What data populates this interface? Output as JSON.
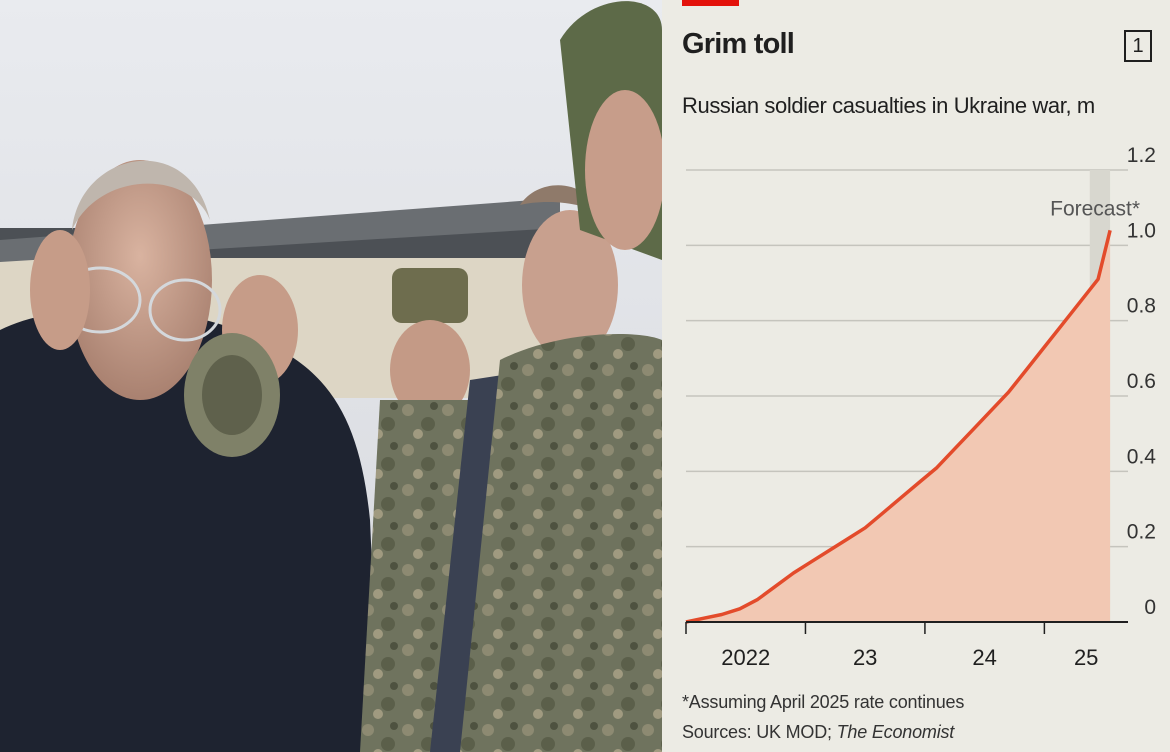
{
  "photo": {
    "description": ""
  },
  "chart": {
    "title": "Grim toll",
    "figure_number": "1",
    "subtitle": "Russian soldier casualties in Ukraine war, m",
    "forecast_label": "Forecast*",
    "footnote": "*Assuming April 2025 rate continues",
    "sources_prefix": "Sources: UK MOD; ",
    "sources_italic": "The Economist"
  },
  "colors": {
    "accent_red": "#e3120b",
    "line": "#e34b2b",
    "area": "#f2c8b3",
    "background": "#ecebe4",
    "forecast_band": "#d8d7cf",
    "gridline": "#c5c4bd"
  },
  "chart_data": {
    "type": "area",
    "title": "Grim toll",
    "subtitle": "Russian soldier casualties in Ukraine war, m",
    "xlabel": "",
    "ylabel": "",
    "y_ticks": [
      0,
      0.2,
      0.4,
      0.6,
      0.8,
      1.0,
      1.2
    ],
    "y_tick_labels": [
      "0",
      "0.2",
      "0.4",
      "0.6",
      "0.8",
      "1.0",
      "1.2"
    ],
    "ylim": [
      0,
      1.2
    ],
    "xlim": [
      2022.0,
      2025.7
    ],
    "x_tick_labels": [
      "2022",
      "23",
      "24",
      "25"
    ],
    "forecast_range": [
      2025.38,
      2025.55
    ],
    "grid": true,
    "series": [
      {
        "x": [
          2022.0,
          2022.15,
          2022.3,
          2022.45,
          2022.6,
          2022.75,
          2022.9,
          2023.05,
          2023.2,
          2023.35,
          2023.5,
          2023.65,
          2023.8,
          2023.95,
          2024.1,
          2024.25,
          2024.4,
          2024.55,
          2024.7,
          2024.85,
          2025.0,
          2025.15,
          2025.3,
          2025.45,
          2025.55
        ],
        "values": [
          0.0,
          0.01,
          0.02,
          0.035,
          0.06,
          0.095,
          0.13,
          0.16,
          0.19,
          0.22,
          0.25,
          0.29,
          0.33,
          0.37,
          0.41,
          0.46,
          0.51,
          0.56,
          0.61,
          0.67,
          0.73,
          0.79,
          0.85,
          0.91,
          1.04
        ]
      }
    ]
  }
}
